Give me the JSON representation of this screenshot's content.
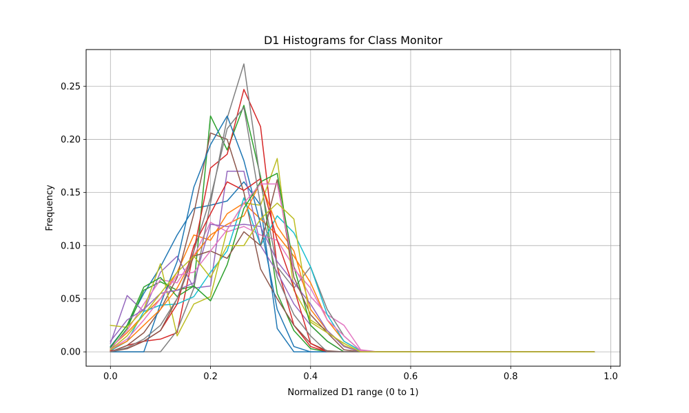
{
  "chart_data": {
    "type": "line",
    "title": "D1 Histograms for Class Monitor",
    "xlabel": "Normalized D1 range (0 to 1)",
    "ylabel": "Frequency",
    "xlim": [
      -0.0486,
      1.0186
    ],
    "ylim": [
      -0.0135,
      0.2845
    ],
    "grid": true,
    "xticks": [
      0.0,
      0.2,
      0.4,
      0.6,
      0.8,
      1.0
    ],
    "xtick_labels": [
      "0.0",
      "0.2",
      "0.4",
      "0.6",
      "0.8",
      "1.0"
    ],
    "yticks": [
      0.0,
      0.05,
      0.1,
      0.15,
      0.2,
      0.25
    ],
    "ytick_labels": [
      "0.00",
      "0.05",
      "0.10",
      "0.15",
      "0.20",
      "0.25"
    ],
    "x": [
      0.0,
      0.0333,
      0.0667,
      0.1,
      0.1333,
      0.1667,
      0.2,
      0.2333,
      0.2667,
      0.3,
      0.3333,
      0.3667,
      0.4,
      0.4333,
      0.4667,
      0.5,
      0.5333,
      0.5667,
      0.6,
      0.6333,
      0.6667,
      0.7,
      0.7333,
      0.7667,
      0.8,
      0.8333,
      0.8667,
      0.9,
      0.9333,
      0.9667
    ],
    "series": [
      {
        "color": "#1f77b4",
        "values": [
          0.005,
          0.025,
          0.055,
          0.08,
          0.11,
          0.135,
          0.138,
          0.142,
          0.16,
          0.138,
          0.022,
          0.0,
          0.0,
          0.0,
          0.0,
          0.0,
          0.0,
          0.0,
          0.0,
          0.0,
          0.0,
          0.0,
          0.0,
          0.0,
          0.0,
          0.0,
          0.0,
          0.0,
          0.0,
          0.0
        ]
      },
      {
        "color": "#ff7f0e",
        "values": [
          0.004,
          0.018,
          0.035,
          0.05,
          0.075,
          0.11,
          0.105,
          0.13,
          0.14,
          0.125,
          0.11,
          0.09,
          0.065,
          0.03,
          0.01,
          0.001,
          0.0,
          0.0,
          0.0,
          0.0,
          0.0,
          0.0,
          0.0,
          0.0,
          0.0,
          0.0,
          0.0,
          0.0,
          0.0,
          0.0
        ]
      },
      {
        "color": "#2ca02c",
        "values": [
          0.002,
          0.022,
          0.058,
          0.066,
          0.058,
          0.062,
          0.222,
          0.19,
          0.232,
          0.165,
          0.055,
          0.02,
          0.003,
          0.0,
          0.0,
          0.0,
          0.0,
          0.0,
          0.0,
          0.0,
          0.0,
          0.0,
          0.0,
          0.0,
          0.0,
          0.0,
          0.0,
          0.0,
          0.0,
          0.0
        ]
      },
      {
        "color": "#d62728",
        "values": [
          0.0,
          0.006,
          0.01,
          0.012,
          0.018,
          0.095,
          0.173,
          0.186,
          0.247,
          0.212,
          0.08,
          0.025,
          0.005,
          0.0,
          0.0,
          0.0,
          0.0,
          0.0,
          0.0,
          0.0,
          0.0,
          0.0,
          0.0,
          0.0,
          0.0,
          0.0,
          0.0,
          0.0,
          0.0,
          0.0
        ]
      },
      {
        "color": "#9467bd",
        "values": [
          0.008,
          0.053,
          0.038,
          0.075,
          0.09,
          0.06,
          0.062,
          0.17,
          0.17,
          0.1,
          0.075,
          0.045,
          0.025,
          0.01,
          0.0,
          0.0,
          0.0,
          0.0,
          0.0,
          0.0,
          0.0,
          0.0,
          0.0,
          0.0,
          0.0,
          0.0,
          0.0,
          0.0,
          0.0,
          0.0
        ]
      },
      {
        "color": "#8c564b",
        "values": [
          0.0,
          0.006,
          0.018,
          0.04,
          0.07,
          0.13,
          0.206,
          0.2,
          0.15,
          0.078,
          0.05,
          0.025,
          0.008,
          0.001,
          0.0,
          0.0,
          0.0,
          0.0,
          0.0,
          0.0,
          0.0,
          0.0,
          0.0,
          0.0,
          0.0,
          0.0,
          0.0,
          0.0,
          0.0,
          0.0
        ]
      },
      {
        "color": "#e377c2",
        "values": [
          0.003,
          0.02,
          0.045,
          0.068,
          0.065,
          0.09,
          0.122,
          0.113,
          0.118,
          0.11,
          0.105,
          0.08,
          0.052,
          0.035,
          0.025,
          0.002,
          0.0,
          0.0,
          0.0,
          0.0,
          0.0,
          0.0,
          0.0,
          0.0,
          0.0,
          0.0,
          0.0,
          0.0,
          0.0,
          0.0
        ]
      },
      {
        "color": "#7f7f7f",
        "values": [
          0.0,
          0.0,
          0.0,
          0.0,
          0.02,
          0.06,
          0.14,
          0.22,
          0.271,
          0.16,
          0.08,
          0.06,
          0.08,
          0.04,
          0.015,
          0.001,
          0.0,
          0.0,
          0.0,
          0.0,
          0.0,
          0.0,
          0.0,
          0.0,
          0.0,
          0.0,
          0.0,
          0.0,
          0.0,
          0.0
        ]
      },
      {
        "color": "#bcbd22",
        "values": [
          0.025,
          0.023,
          0.04,
          0.083,
          0.015,
          0.045,
          0.052,
          0.115,
          0.14,
          0.138,
          0.182,
          0.058,
          0.03,
          0.02,
          0.006,
          0.0,
          0.0,
          0.0,
          0.0,
          0.0,
          0.0,
          0.0,
          0.0,
          0.0,
          0.0,
          0.0,
          0.0,
          0.0,
          0.0,
          0.0
        ]
      },
      {
        "color": "#17becf",
        "values": [
          0.001,
          0.01,
          0.038,
          0.044,
          0.045,
          0.052,
          0.075,
          0.095,
          0.145,
          0.1,
          0.128,
          0.112,
          0.08,
          0.035,
          0.01,
          0.001,
          0.0,
          0.0,
          0.0,
          0.0,
          0.0,
          0.0,
          0.0,
          0.0,
          0.0,
          0.0,
          0.0,
          0.0,
          0.0,
          0.0
        ]
      },
      {
        "color": "#1f77b4",
        "values": [
          0.0,
          0.0,
          0.0,
          0.045,
          0.085,
          0.155,
          0.195,
          0.222,
          0.18,
          0.12,
          0.04,
          0.005,
          0.0,
          0.0,
          0.0,
          0.0,
          0.0,
          0.0,
          0.0,
          0.0,
          0.0,
          0.0,
          0.0,
          0.0,
          0.0,
          0.0,
          0.0,
          0.0,
          0.0,
          0.0
        ]
      },
      {
        "color": "#ff7f0e",
        "values": [
          0.002,
          0.01,
          0.025,
          0.04,
          0.06,
          0.09,
          0.11,
          0.12,
          0.128,
          0.16,
          0.118,
          0.095,
          0.04,
          0.02,
          0.005,
          0.0,
          0.0,
          0.0,
          0.0,
          0.0,
          0.0,
          0.0,
          0.0,
          0.0,
          0.0,
          0.0,
          0.0,
          0.0,
          0.0,
          0.0
        ]
      },
      {
        "color": "#2ca02c",
        "values": [
          0.004,
          0.025,
          0.061,
          0.07,
          0.052,
          0.062,
          0.048,
          0.082,
          0.135,
          0.16,
          0.168,
          0.08,
          0.025,
          0.01,
          0.0,
          0.0,
          0.0,
          0.0,
          0.0,
          0.0,
          0.0,
          0.0,
          0.0,
          0.0,
          0.0,
          0.0,
          0.0,
          0.0,
          0.0,
          0.0
        ]
      },
      {
        "color": "#d62728",
        "values": [
          0.001,
          0.003,
          0.01,
          0.02,
          0.045,
          0.1,
          0.13,
          0.16,
          0.152,
          0.163,
          0.105,
          0.06,
          0.008,
          0.0,
          0.0,
          0.0,
          0.0,
          0.0,
          0.0,
          0.0,
          0.0,
          0.0,
          0.0,
          0.0,
          0.0,
          0.0,
          0.0,
          0.0,
          0.0,
          0.0
        ]
      },
      {
        "color": "#9467bd",
        "values": [
          0.01,
          0.03,
          0.04,
          0.055,
          0.058,
          0.065,
          0.12,
          0.118,
          0.12,
          0.118,
          0.085,
          0.065,
          0.045,
          0.02,
          0.005,
          0.0,
          0.0,
          0.0,
          0.0,
          0.0,
          0.0,
          0.0,
          0.0,
          0.0,
          0.0,
          0.0,
          0.0,
          0.0,
          0.0,
          0.0
        ]
      },
      {
        "color": "#8c564b",
        "values": [
          0.0,
          0.003,
          0.01,
          0.02,
          0.05,
          0.09,
          0.095,
          0.088,
          0.113,
          0.1,
          0.162,
          0.07,
          0.035,
          0.018,
          0.002,
          0.0,
          0.0,
          0.0,
          0.0,
          0.0,
          0.0,
          0.0,
          0.0,
          0.0,
          0.0,
          0.0,
          0.0,
          0.0,
          0.0,
          0.0
        ]
      },
      {
        "color": "#e377c2",
        "values": [
          0.002,
          0.012,
          0.03,
          0.05,
          0.072,
          0.075,
          0.095,
          0.115,
          0.14,
          0.158,
          0.158,
          0.078,
          0.06,
          0.03,
          0.015,
          0.001,
          0.0,
          0.0,
          0.0,
          0.0,
          0.0,
          0.0,
          0.0,
          0.0,
          0.0,
          0.0,
          0.0,
          0.0,
          0.0,
          0.0
        ]
      },
      {
        "color": "#7f7f7f",
        "values": [
          0.0,
          0.004,
          0.012,
          0.025,
          0.05,
          0.095,
          0.145,
          0.21,
          0.23,
          0.138,
          0.07,
          0.035,
          0.015,
          0.0,
          0.0,
          0.0,
          0.0,
          0.0,
          0.0,
          0.0,
          0.0,
          0.0,
          0.0,
          0.0,
          0.0,
          0.0,
          0.0,
          0.0,
          0.0,
          0.0
        ]
      },
      {
        "color": "#bcbd22",
        "values": [
          0.002,
          0.015,
          0.035,
          0.055,
          0.075,
          0.09,
          0.07,
          0.1,
          0.1,
          0.125,
          0.14,
          0.125,
          0.028,
          0.018,
          0.008,
          0.0,
          0.0,
          0.0,
          0.0,
          0.0,
          0.0,
          0.0,
          0.0,
          0.0,
          0.0,
          0.0,
          0.0,
          0.0,
          0.0,
          0.0
        ]
      }
    ]
  }
}
